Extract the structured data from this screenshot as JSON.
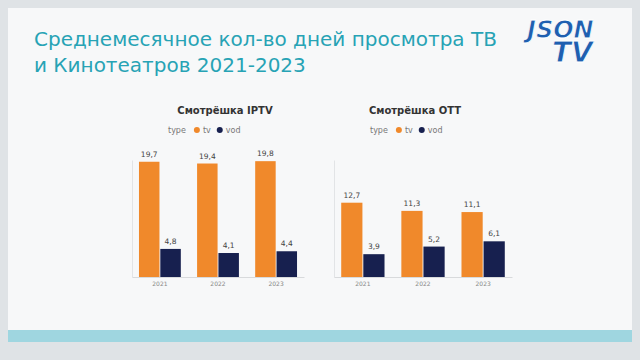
{
  "title": "Среднемесячное кол-во дней просмотра ТВ и Кинотеатров 2021-2023",
  "annotations": [
    "JSON",
    "TV"
  ],
  "chart_data": [
    {
      "type": "bar",
      "title": "Смотрёшка IPTV",
      "legend_title": "type",
      "categories": [
        "2021",
        "2022",
        "2023"
      ],
      "series": [
        {
          "name": "tv",
          "color": "#f0892b",
          "values": [
            19.7,
            19.4,
            19.8
          ],
          "value_labels": [
            "19,7",
            "19,4",
            "19,8"
          ]
        },
        {
          "name": "vod",
          "color": "#17204f",
          "values": [
            4.8,
            4.1,
            4.4
          ],
          "value_labels": [
            "4,8",
            "4,1",
            "4,4"
          ]
        }
      ],
      "ylim": [
        0,
        20
      ],
      "data_labels": true,
      "tick_labels": "x",
      "grid": false
    },
    {
      "type": "bar",
      "title": "Смотрёшка OTT",
      "legend_title": "type",
      "categories": [
        "2021",
        "2022",
        "2023"
      ],
      "series": [
        {
          "name": "tv",
          "color": "#f0892b",
          "values": [
            12.7,
            11.3,
            11.1
          ],
          "value_labels": [
            "12,7",
            "11,3",
            "11,1"
          ]
        },
        {
          "name": "vod",
          "color": "#17204f",
          "values": [
            3.9,
            5.2,
            6.1
          ],
          "value_labels": [
            "3,9",
            "5,2",
            "6,1"
          ]
        }
      ],
      "ylim": [
        0,
        20
      ],
      "data_labels": true,
      "tick_labels": "x",
      "grid": false
    }
  ]
}
